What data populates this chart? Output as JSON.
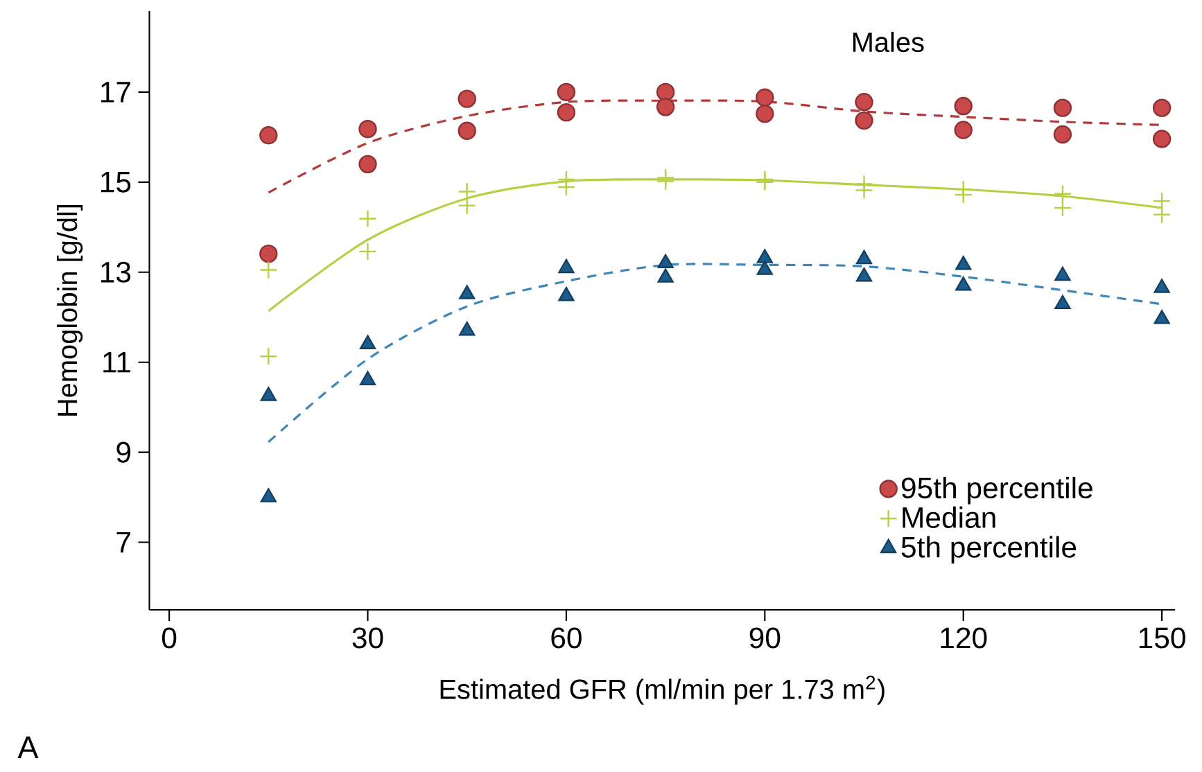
{
  "chart_data": {
    "type": "scatter",
    "title": "Males",
    "xlabel": "Estimated GFR (ml/min per 1.73 m$^{2}$)",
    "ylabel": "Hemoglobin [g/dl]",
    "annotations": [
      "A"
    ],
    "xlim": [
      -3,
      152
    ],
    "ylim": [
      5.5,
      18.8
    ],
    "xticks": [
      0,
      30,
      60,
      90,
      120,
      150
    ],
    "yticks": [
      7,
      9,
      11,
      13,
      15,
      17
    ],
    "grid": false,
    "legend": "bottom right",
    "series": [
      {
        "name": "95th percentile",
        "marker": "circle",
        "color": "#c9484a",
        "x": [
          15,
          15,
          30,
          30,
          45,
          45,
          60,
          60,
          75,
          75,
          90,
          90,
          105,
          105,
          120,
          120,
          135,
          135,
          150,
          150
        ],
        "values": [
          16.04,
          13.41,
          16.18,
          15.4,
          16.85,
          16.14,
          17.0,
          16.55,
          17.0,
          16.67,
          16.88,
          16.52,
          16.78,
          16.37,
          16.69,
          16.16,
          16.65,
          16.06,
          16.65,
          15.96
        ]
      },
      {
        "name": "Median",
        "marker": "cross",
        "color": "#b8cf45",
        "x": [
          15,
          15,
          30,
          30,
          45,
          45,
          60,
          60,
          75,
          75,
          90,
          90,
          105,
          105,
          120,
          120,
          135,
          135,
          150,
          150
        ],
        "values": [
          13.05,
          11.13,
          14.19,
          13.46,
          14.79,
          14.48,
          15.06,
          14.89,
          15.1,
          15.02,
          15.06,
          15.0,
          14.96,
          14.82,
          14.84,
          14.72,
          14.74,
          14.43,
          14.58,
          14.28
        ]
      },
      {
        "name": "5th percentile",
        "marker": "triangle",
        "color": "#1b5c8c",
        "x": [
          15,
          15,
          30,
          30,
          45,
          45,
          60,
          60,
          75,
          75,
          90,
          90,
          105,
          105,
          120,
          120,
          135,
          135,
          150,
          150
        ],
        "values": [
          10.25,
          8.0,
          11.4,
          10.6,
          12.51,
          11.7,
          13.09,
          12.47,
          13.2,
          12.88,
          13.31,
          13.05,
          13.29,
          12.9,
          13.16,
          12.7,
          12.92,
          12.29,
          12.65,
          11.96
        ]
      },
      {
        "type": "line",
        "line_style": "dashed",
        "color": "#b5393c",
        "x": [
          15,
          30,
          45,
          60,
          75,
          90,
          105,
          120,
          135,
          150
        ],
        "values": [
          14.77,
          15.87,
          16.47,
          16.78,
          16.81,
          16.79,
          16.57,
          16.45,
          16.34,
          16.27
        ]
      },
      {
        "type": "line",
        "line_style": "solid",
        "color": "#b8cf45",
        "x": [
          15,
          30,
          45,
          60,
          75,
          90,
          105,
          120,
          135,
          150
        ],
        "values": [
          12.14,
          13.72,
          14.64,
          15.02,
          15.06,
          15.04,
          14.94,
          14.84,
          14.69,
          14.43
        ]
      },
      {
        "type": "line",
        "line_style": "dashed",
        "color": "#3f86b8",
        "x": [
          15,
          30,
          45,
          60,
          75,
          90,
          105,
          120,
          135,
          150
        ],
        "values": [
          9.23,
          11.07,
          12.24,
          12.8,
          13.16,
          13.16,
          13.13,
          12.9,
          12.6,
          12.29
        ]
      }
    ]
  }
}
